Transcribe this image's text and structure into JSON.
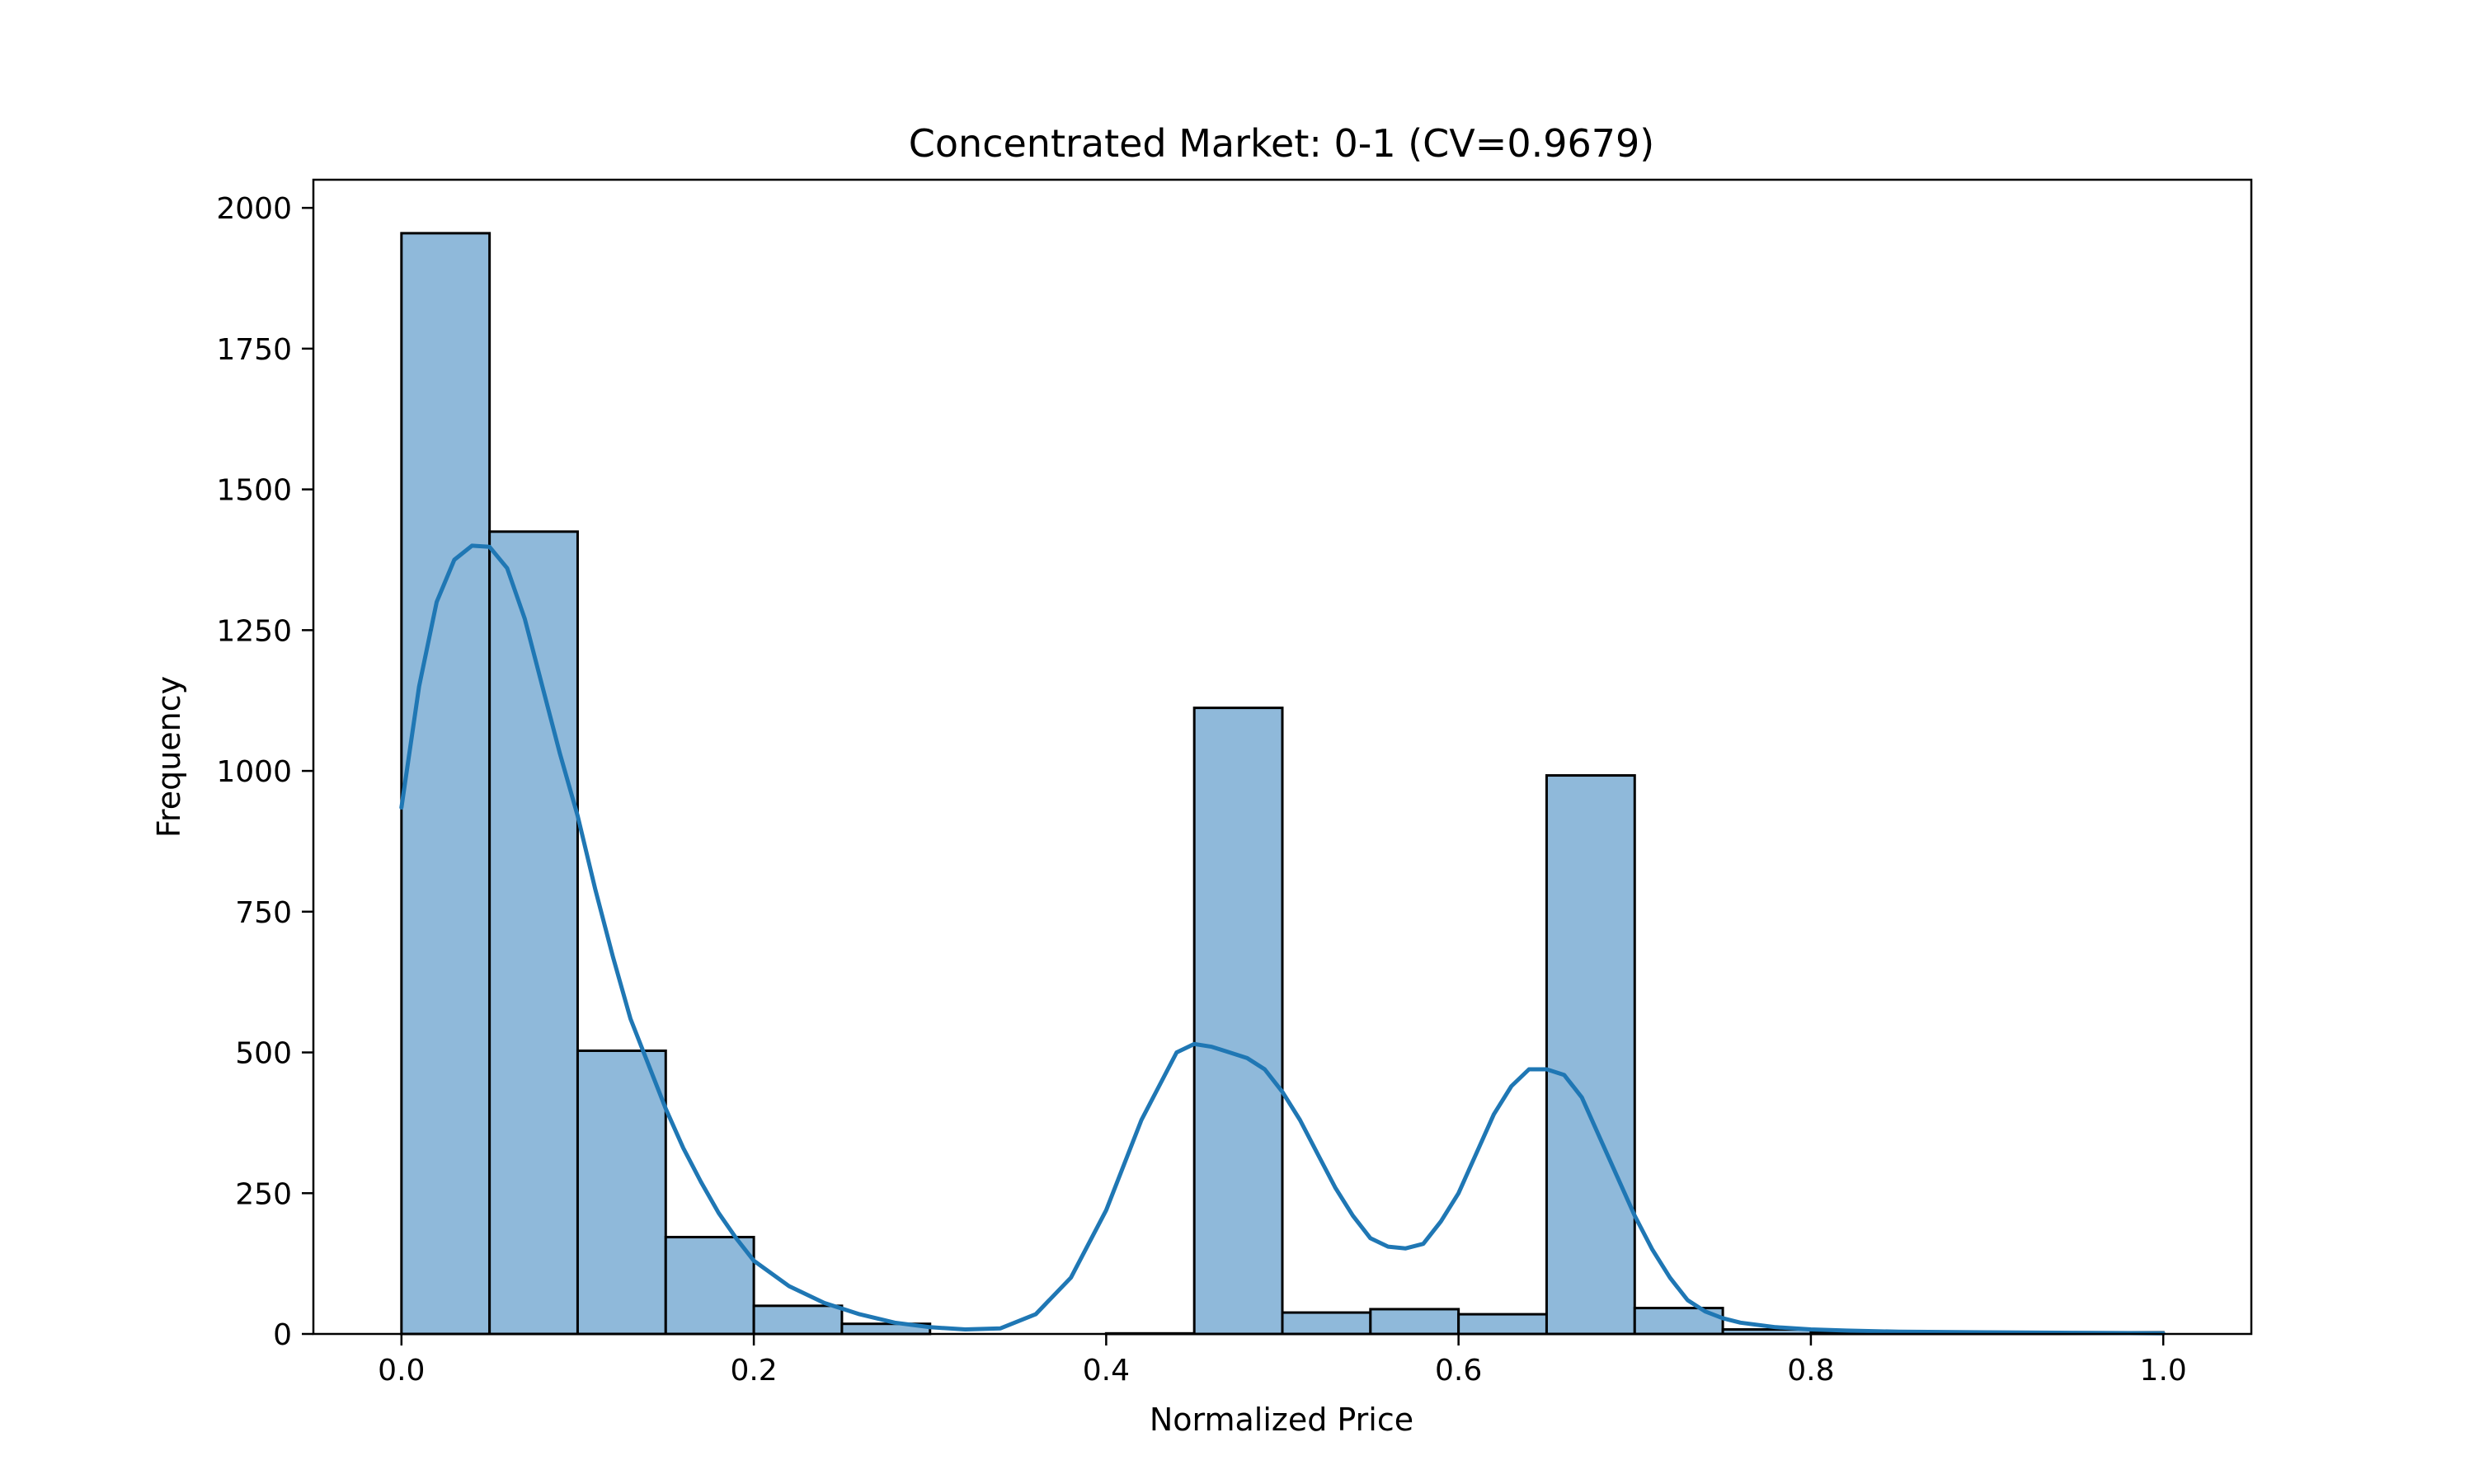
{
  "chart_data": {
    "type": "bar",
    "title": "Concentrated Market: 0-1 (CV=0.9679)",
    "xlabel": "Normalized Price",
    "ylabel": "Frequency",
    "xlim": [
      -0.05,
      1.05
    ],
    "ylim": [
      0,
      2050
    ],
    "xticks": [
      0.0,
      0.2,
      0.4,
      0.6,
      0.8,
      1.0
    ],
    "xtick_labels": [
      "0.0",
      "0.2",
      "0.4",
      "0.6",
      "0.8",
      "1.0"
    ],
    "yticks": [
      0,
      250,
      500,
      750,
      1000,
      1250,
      1500,
      1750,
      2000
    ],
    "ytick_labels": [
      "0",
      "250",
      "500",
      "750",
      "1000",
      "1250",
      "1500",
      "1750",
      "2000"
    ],
    "grid": false,
    "bar_color": "#8fb9da",
    "edge_color": "#000000",
    "kde_color": "#1f77b4",
    "bins": [
      {
        "x0": 0.0,
        "x1": 0.05,
        "count": 1955
      },
      {
        "x0": 0.05,
        "x1": 0.1,
        "count": 1425
      },
      {
        "x0": 0.1,
        "x1": 0.15,
        "count": 503
      },
      {
        "x0": 0.15,
        "x1": 0.2,
        "count": 172
      },
      {
        "x0": 0.2,
        "x1": 0.25,
        "count": 50
      },
      {
        "x0": 0.25,
        "x1": 0.3,
        "count": 18
      },
      {
        "x0": 0.3,
        "x1": 0.35,
        "count": 0
      },
      {
        "x0": 0.35,
        "x1": 0.4,
        "count": 0
      },
      {
        "x0": 0.4,
        "x1": 0.45,
        "count": 1
      },
      {
        "x0": 0.45,
        "x1": 0.5,
        "count": 1112
      },
      {
        "x0": 0.5,
        "x1": 0.55,
        "count": 38
      },
      {
        "x0": 0.55,
        "x1": 0.6,
        "count": 44
      },
      {
        "x0": 0.6,
        "x1": 0.65,
        "count": 35
      },
      {
        "x0": 0.65,
        "x1": 0.7,
        "count": 992
      },
      {
        "x0": 0.7,
        "x1": 0.75,
        "count": 46
      },
      {
        "x0": 0.75,
        "x1": 0.8,
        "count": 8
      },
      {
        "x0": 0.8,
        "x1": 0.85,
        "count": 3
      },
      {
        "x0": 0.85,
        "x1": 0.9,
        "count": 1
      },
      {
        "x0": 0.9,
        "x1": 0.95,
        "count": 1
      },
      {
        "x0": 0.95,
        "x1": 1.0,
        "count": 3
      }
    ],
    "kde": {
      "x": [
        0.0,
        0.01,
        0.02,
        0.03,
        0.04,
        0.05,
        0.06,
        0.07,
        0.08,
        0.09,
        0.1,
        0.11,
        0.12,
        0.13,
        0.14,
        0.15,
        0.16,
        0.17,
        0.18,
        0.19,
        0.2,
        0.22,
        0.24,
        0.26,
        0.28,
        0.3,
        0.32,
        0.34,
        0.36,
        0.38,
        0.4,
        0.42,
        0.44,
        0.45,
        0.46,
        0.47,
        0.48,
        0.49,
        0.5,
        0.51,
        0.52,
        0.53,
        0.54,
        0.55,
        0.56,
        0.57,
        0.58,
        0.59,
        0.6,
        0.61,
        0.62,
        0.63,
        0.64,
        0.65,
        0.66,
        0.67,
        0.68,
        0.69,
        0.7,
        0.71,
        0.72,
        0.73,
        0.74,
        0.75,
        0.76,
        0.78,
        0.8,
        0.82,
        0.85,
        0.9,
        0.95,
        1.0
      ],
      "y": [
        935,
        1150,
        1300,
        1375,
        1400,
        1398,
        1360,
        1270,
        1150,
        1030,
        920,
        790,
        670,
        560,
        480,
        400,
        330,
        270,
        215,
        170,
        130,
        85,
        55,
        35,
        20,
        12,
        8,
        10,
        35,
        100,
        220,
        380,
        500,
        515,
        510,
        500,
        490,
        470,
        430,
        380,
        320,
        260,
        210,
        170,
        155,
        152,
        160,
        200,
        250,
        320,
        390,
        440,
        470,
        470,
        460,
        420,
        350,
        280,
        210,
        150,
        100,
        60,
        40,
        28,
        20,
        12,
        8,
        6,
        4,
        3,
        2,
        1
      ]
    }
  }
}
